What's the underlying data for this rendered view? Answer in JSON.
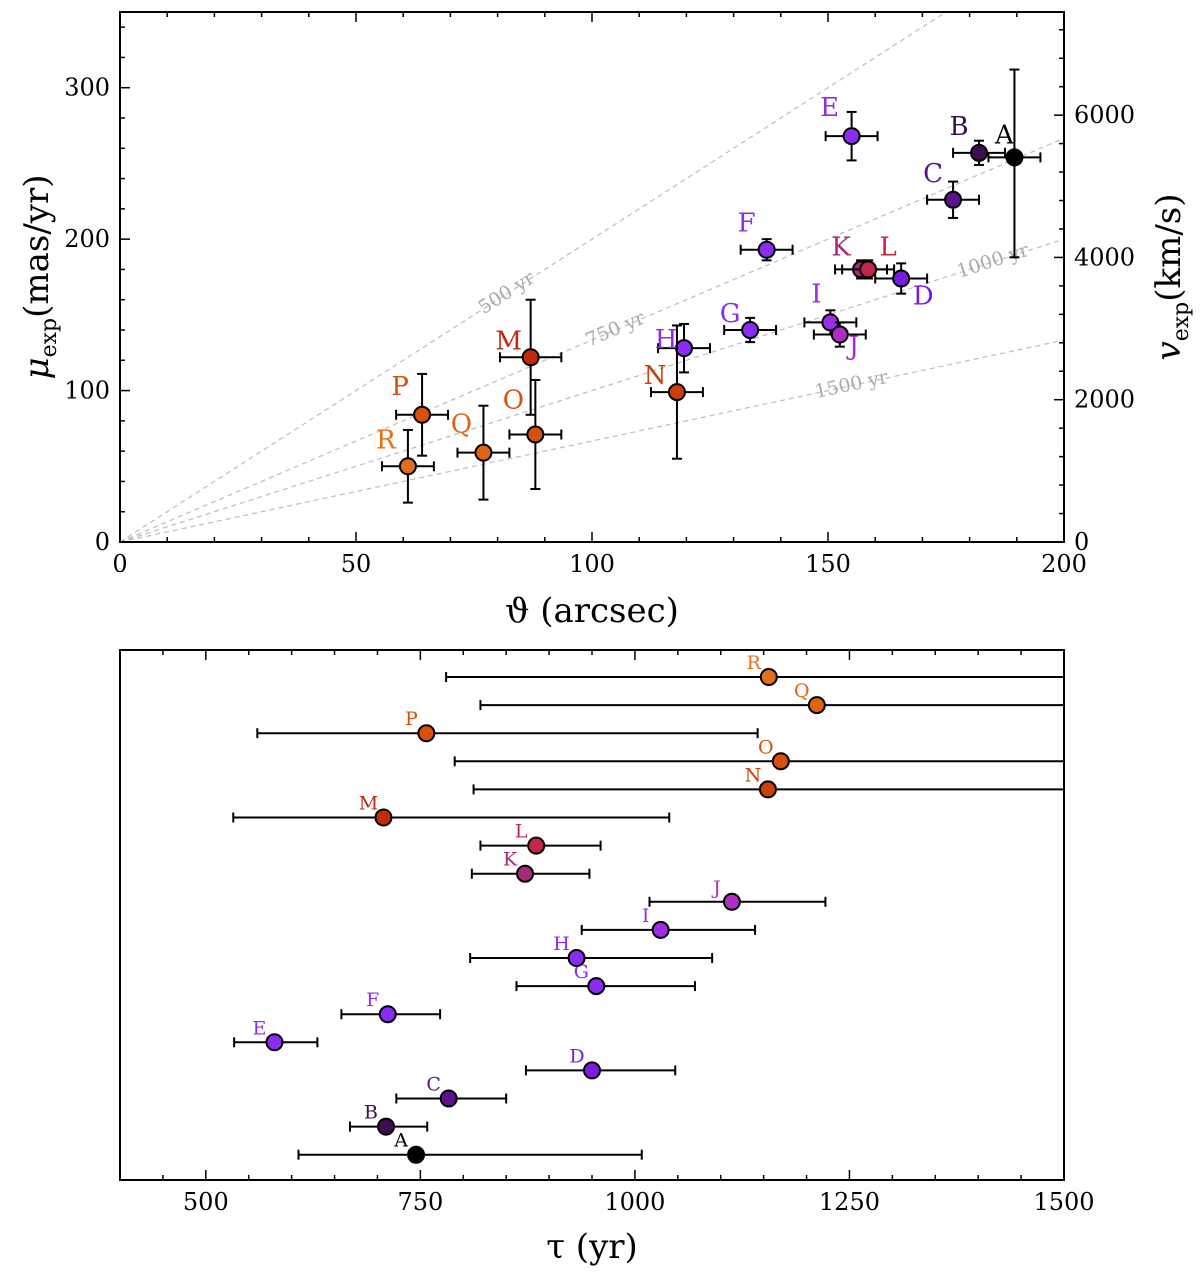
{
  "chart_data": [
    {
      "type": "scatter",
      "xlabel": "ϑ (arcsec)",
      "ylabel_main": "μ",
      "ylabel_sub": "exp",
      "ylabel_unit": "(mas/yr)",
      "y2label_main": "v",
      "y2label_sub": "exp",
      "y2label_unit": "(km/s)",
      "xlim": [
        0,
        200
      ],
      "ylim": [
        0,
        350
      ],
      "y2lim": [
        0,
        7450
      ],
      "xticks": [
        0,
        50,
        100,
        150,
        200
      ],
      "yticks": [
        0,
        100,
        200,
        300
      ],
      "y2ticks": [
        0,
        2000,
        4000,
        6000
      ],
      "grid": false,
      "age_lines": [
        {
          "label": "500 yr",
          "age": 500,
          "label_x": 82
        },
        {
          "label": "750 yr",
          "age": 750,
          "label_x": 105
        },
        {
          "label": "1000 yr",
          "age": 1000,
          "label_x": 185
        },
        {
          "label": "1500 yr",
          "age": 1500,
          "label_x": 155
        }
      ],
      "points": [
        {
          "name": "A",
          "x": 189.5,
          "y": 254,
          "xerr": 5.5,
          "yerr_lo": 66,
          "yerr_hi": 58,
          "color": "#000000",
          "label_color": "#000000"
        },
        {
          "name": "B",
          "x": 182.0,
          "y": 257,
          "xerr": 5.5,
          "yerr_lo": 8,
          "yerr_hi": 8,
          "color": "#3d0d4f",
          "label_color": "#3d0d4f"
        },
        {
          "name": "C",
          "x": 176.5,
          "y": 226,
          "xerr": 5.5,
          "yerr_lo": 12,
          "yerr_hi": 12,
          "color": "#5a138a",
          "label_color": "#5a138a"
        },
        {
          "name": "D",
          "x": 165.5,
          "y": 174,
          "xerr": 5.5,
          "yerr_lo": 10,
          "yerr_hi": 10,
          "color": "#7a1be0",
          "label_color": "#7a1be0"
        },
        {
          "name": "E",
          "x": 155.0,
          "y": 268,
          "xerr": 5.5,
          "yerr_lo": 16,
          "yerr_hi": 16,
          "color": "#8b2cf5",
          "label_color": "#8b2cf5"
        },
        {
          "name": "F",
          "x": 137.0,
          "y": 193,
          "xerr": 5.5,
          "yerr_lo": 7,
          "yerr_hi": 7,
          "color": "#8b2cf5",
          "label_color": "#8b2cf5"
        },
        {
          "name": "G",
          "x": 133.5,
          "y": 140,
          "xerr": 5.5,
          "yerr_lo": 8,
          "yerr_hi": 8,
          "color": "#8b2cf5",
          "label_color": "#8b2cf5"
        },
        {
          "name": "H",
          "x": 119.5,
          "y": 128,
          "xerr": 5.5,
          "yerr_lo": 16,
          "yerr_hi": 16,
          "color": "#8b2cf5",
          "label_color": "#8b2cf5"
        },
        {
          "name": "I",
          "x": 150.5,
          "y": 145,
          "xerr": 5.5,
          "yerr_lo": 8,
          "yerr_hi": 8,
          "color": "#9b2de6",
          "label_color": "#9b2de6"
        },
        {
          "name": "J",
          "x": 152.5,
          "y": 137,
          "xerr": 5.5,
          "yerr_lo": 8,
          "yerr_hi": 8,
          "color": "#b02cc6",
          "label_color": "#b02cc6"
        },
        {
          "name": "K",
          "x": 157.0,
          "y": 180,
          "xerr": 5.5,
          "yerr_lo": 6,
          "yerr_hi": 6,
          "color": "#a8287a",
          "label_color": "#a8287a"
        },
        {
          "name": "L",
          "x": 158.5,
          "y": 180,
          "xerr": 5.5,
          "yerr_lo": 6,
          "yerr_hi": 6,
          "color": "#c4264a",
          "label_color": "#c4264a"
        },
        {
          "name": "M",
          "x": 87.0,
          "y": 122,
          "xerr": 6.5,
          "yerr_lo": 38,
          "yerr_hi": 38,
          "color": "#c02a0e",
          "label_color": "#c02a0e"
        },
        {
          "name": "N",
          "x": 118.0,
          "y": 99,
          "xerr": 5.5,
          "yerr_lo": 44,
          "yerr_hi": 44,
          "color": "#cc3f0a",
          "label_color": "#cc3f0a"
        },
        {
          "name": "O",
          "x": 88.0,
          "y": 71,
          "xerr": 5.5,
          "yerr_lo": 36,
          "yerr_hi": 36,
          "color": "#d4510e",
          "label_color": "#d4510e"
        },
        {
          "name": "P",
          "x": 64.0,
          "y": 84,
          "xerr": 5.5,
          "yerr_lo": 27,
          "yerr_hi": 27,
          "color": "#d94f0c",
          "label_color": "#d94f0c"
        },
        {
          "name": "Q",
          "x": 77.0,
          "y": 59,
          "xerr": 5.5,
          "yerr_lo": 31,
          "yerr_hi": 31,
          "color": "#de6313",
          "label_color": "#de6313"
        },
        {
          "name": "R",
          "x": 61.0,
          "y": 50,
          "xerr": 5.5,
          "yerr_lo": 24,
          "yerr_hi": 24,
          "color": "#e0701a",
          "label_color": "#e0701a"
        }
      ]
    },
    {
      "type": "scatter",
      "xlabel": "τ (yr)",
      "xlim": [
        400,
        1500
      ],
      "xticks": [
        500,
        750,
        1000,
        1250,
        1500
      ],
      "grid": false,
      "points": [
        {
          "name": "A",
          "x": 745,
          "lo": 608,
          "hi": 1008,
          "color": "#000000"
        },
        {
          "name": "B",
          "x": 710,
          "lo": 668,
          "hi": 758,
          "color": "#3d0d4f"
        },
        {
          "name": "C",
          "x": 783,
          "lo": 722,
          "hi": 850,
          "color": "#5a138a"
        },
        {
          "name": "D",
          "x": 950,
          "lo": 873,
          "hi": 1047,
          "color": "#7a1be0"
        },
        {
          "name": "E",
          "x": 580,
          "lo": 533,
          "hi": 630,
          "color": "#8b2cf5"
        },
        {
          "name": "F",
          "x": 712,
          "lo": 658,
          "hi": 773,
          "color": "#8b2cf5"
        },
        {
          "name": "G",
          "x": 955,
          "lo": 862,
          "hi": 1070,
          "color": "#8b2cf5"
        },
        {
          "name": "H",
          "x": 932,
          "lo": 808,
          "hi": 1090,
          "color": "#8b2cf5"
        },
        {
          "name": "I",
          "x": 1030,
          "lo": 938,
          "hi": 1140,
          "color": "#9b2de6"
        },
        {
          "name": "J",
          "x": 1113,
          "lo": 1017,
          "hi": 1222,
          "color": "#b02cc6"
        },
        {
          "name": "K",
          "x": 872,
          "lo": 810,
          "hi": 947,
          "color": "#a8287a"
        },
        {
          "name": "L",
          "x": 885,
          "lo": 820,
          "hi": 960,
          "color": "#c4264a"
        },
        {
          "name": "M",
          "x": 707,
          "lo": 532,
          "hi": 1040,
          "color": "#c02a0e"
        },
        {
          "name": "N",
          "x": 1155,
          "lo": 812,
          "hi": 1500,
          "color": "#cc3f0a"
        },
        {
          "name": "O",
          "x": 1170,
          "lo": 790,
          "hi": 1500,
          "color": "#d4510e"
        },
        {
          "name": "P",
          "x": 757,
          "lo": 560,
          "hi": 1143,
          "color": "#d94f0c"
        },
        {
          "name": "Q",
          "x": 1212,
          "lo": 820,
          "hi": 1500,
          "color": "#de6313"
        },
        {
          "name": "R",
          "x": 1156,
          "lo": 780,
          "hi": 1500,
          "color": "#e0701a"
        }
      ]
    }
  ]
}
